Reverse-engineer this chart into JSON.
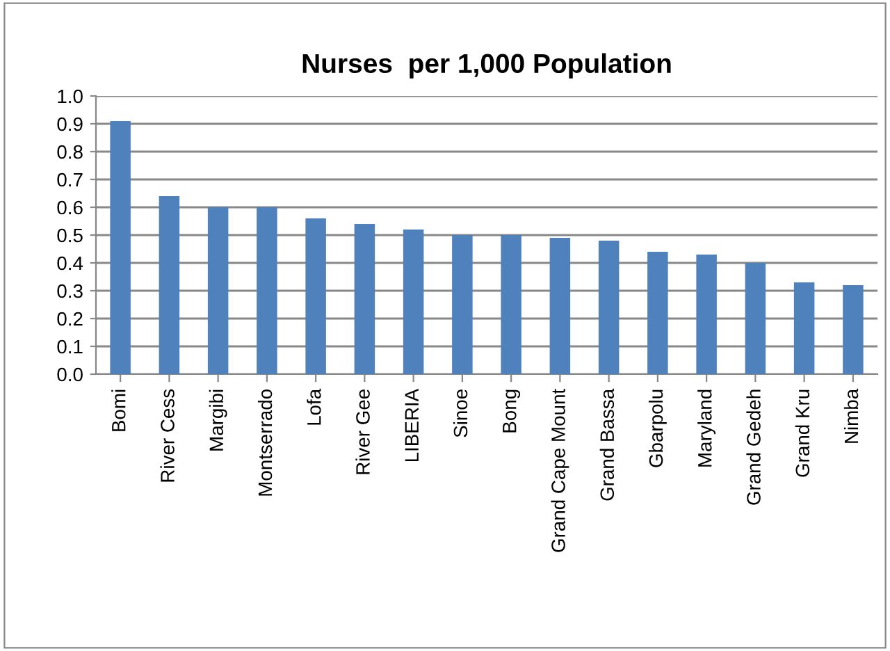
{
  "chart_data": {
    "type": "bar",
    "title": "Nurses  per 1,000 Population",
    "categories": [
      "Bomi",
      "River Cess",
      "Margibi",
      "Montserrado",
      "Lofa",
      "River Gee",
      "LIBERIA",
      "Sinoe",
      "Bong",
      "Grand Cape Mount",
      "Grand Bassa",
      "Gbarpolu",
      "Maryland",
      "Grand Gedeh",
      "Grand Kru",
      "Nimba"
    ],
    "values": [
      0.91,
      0.64,
      0.6,
      0.6,
      0.56,
      0.54,
      0.52,
      0.5,
      0.5,
      0.49,
      0.48,
      0.44,
      0.43,
      0.4,
      0.33,
      0.32
    ],
    "color": "#4f81bd",
    "ylim": [
      0,
      1.0
    ],
    "yticks": [
      {
        "value": 0,
        "label": "0.0"
      },
      {
        "value": 0.1,
        "label": "0.1"
      },
      {
        "value": 0.2,
        "label": "0.2"
      },
      {
        "value": 0.3,
        "label": "0.3"
      },
      {
        "value": 0.4,
        "label": "0.4"
      },
      {
        "value": 0.5,
        "label": "0.5"
      },
      {
        "value": 0.6,
        "label": "0.6"
      },
      {
        "value": 0.7,
        "label": "0.7"
      },
      {
        "value": 0.8,
        "label": "0.8"
      },
      {
        "value": 0.9,
        "label": "0.9"
      },
      {
        "value": 1.0,
        "label": "1.0"
      }
    ],
    "grid": "y",
    "legend": false
  }
}
